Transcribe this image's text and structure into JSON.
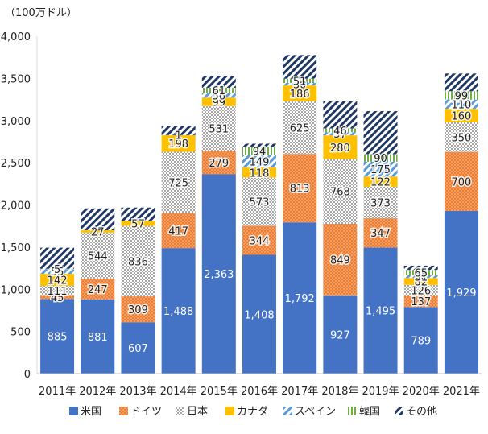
{
  "chart_data": {
    "type": "bar",
    "stacked": true,
    "unit_label": "（100万ドル）",
    "ylim": [
      0,
      4000
    ],
    "yticks": [
      0,
      500,
      1000,
      1500,
      2000,
      2500,
      3000,
      3500,
      4000
    ],
    "ytick_labels": [
      "0",
      "500",
      "1,000",
      "1,500",
      "2,000",
      "2,500",
      "3,000",
      "3,500",
      "4,000"
    ],
    "categories": [
      "2011年",
      "2012年",
      "2013年",
      "2014年",
      "2015年",
      "2016年",
      "2017年",
      "2018年",
      "2019年",
      "2020年",
      "2021年"
    ],
    "series": [
      {
        "name": "米国",
        "color": "#4472C4",
        "pattern": "solid",
        "values": [
          885,
          881,
          607,
          1488,
          2363,
          1408,
          1792,
          927,
          1495,
          789,
          1929
        ],
        "labels": [
          "885",
          "881",
          "607",
          "1,488",
          "2,363",
          "1,408",
          "1,792",
          "927",
          "1,495",
          "789",
          "1,929"
        ]
      },
      {
        "name": "ドイツ",
        "color": "#ED7D31",
        "pattern": "dots",
        "values": [
          45,
          247,
          309,
          417,
          279,
          344,
          813,
          849,
          347,
          137,
          700
        ],
        "labels": [
          "45",
          "247",
          "309",
          "417",
          "279",
          "344",
          "813",
          "849",
          "347",
          "137",
          "700"
        ]
      },
      {
        "name": "日本",
        "color": "#A5A5A5",
        "pattern": "checker",
        "values": [
          111,
          544,
          836,
          725,
          531,
          573,
          625,
          768,
          373,
          126,
          350
        ],
        "labels": [
          "111",
          "544",
          "836",
          "725",
          "531",
          "573",
          "625",
          "768",
          "373",
          "126",
          "350"
        ]
      },
      {
        "name": "カナダ",
        "color": "#FFC000",
        "pattern": "solid",
        "values": [
          142,
          27,
          57,
          198,
          99,
          118,
          186,
          280,
          122,
          82,
          160
        ],
        "labels": [
          "142",
          "27",
          "57",
          "198",
          "99",
          "118",
          "186",
          "280",
          "122",
          "82",
          "160"
        ]
      },
      {
        "name": "スペイン",
        "color": "#5B9BD5",
        "pattern": "diag",
        "values": [
          55,
          0,
          0,
          1,
          56,
          149,
          30,
          37,
          175,
          31,
          110
        ],
        "labels": [
          "55",
          "",
          "",
          "1",
          "56",
          "149",
          "30",
          "37",
          "175",
          "31",
          "110"
        ]
      },
      {
        "name": "韓国",
        "color": "#70AD47",
        "pattern": "vertical",
        "values": [
          5,
          0,
          0,
          0,
          61,
          94,
          51,
          46,
          90,
          65,
          99
        ],
        "labels": [
          "5",
          "",
          "",
          "",
          "61",
          "94",
          "51",
          "46",
          "90",
          "65",
          "99"
        ]
      },
      {
        "name": "その他",
        "color": "#203864",
        "pattern": "diag-dark",
        "values": [
          250,
          260,
          160,
          110,
          140,
          40,
          280,
          320,
          510,
          50,
          210
        ],
        "labels": [
          "",
          "",
          "",
          "",
          "",
          "",
          "",
          "",
          "",
          "",
          ""
        ]
      }
    ],
    "xlabel": "",
    "ylabel": "",
    "legend_position": "bottom",
    "grid": false
  }
}
